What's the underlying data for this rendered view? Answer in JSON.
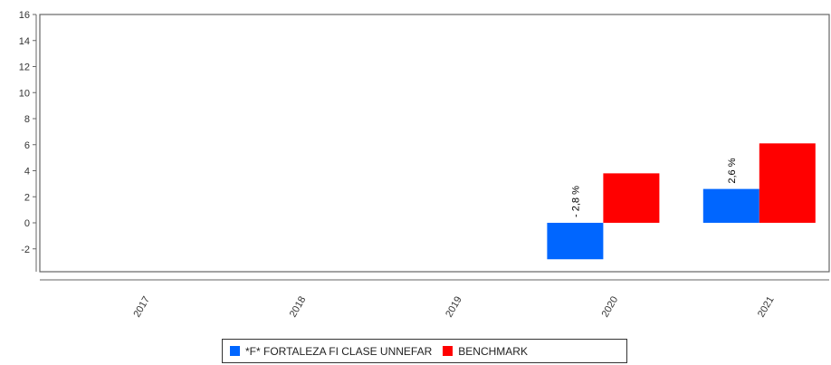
{
  "chart_data": {
    "type": "bar",
    "categories": [
      "2017",
      "2018",
      "2019",
      "2020",
      "2021"
    ],
    "series": [
      {
        "name": "*F* FORTALEZA FI CLASE UNNEFAR",
        "color": "#0066ff",
        "values": [
          null,
          null,
          null,
          -2.8,
          2.6
        ],
        "labels": [
          null,
          null,
          null,
          "- 2,8 %",
          "2,6 %"
        ]
      },
      {
        "name": "BENCHMARK",
        "color": "#ff0000",
        "values": [
          null,
          null,
          null,
          3.8,
          6.1
        ],
        "labels": [
          null,
          null,
          null,
          null,
          null
        ]
      }
    ],
    "ylim": [
      -4,
      16
    ],
    "yticks": [
      -2,
      0,
      2,
      4,
      6,
      8,
      10,
      12,
      14,
      16
    ],
    "title": "",
    "xlabel": "",
    "ylabel": "",
    "legend_position": "bottom"
  }
}
